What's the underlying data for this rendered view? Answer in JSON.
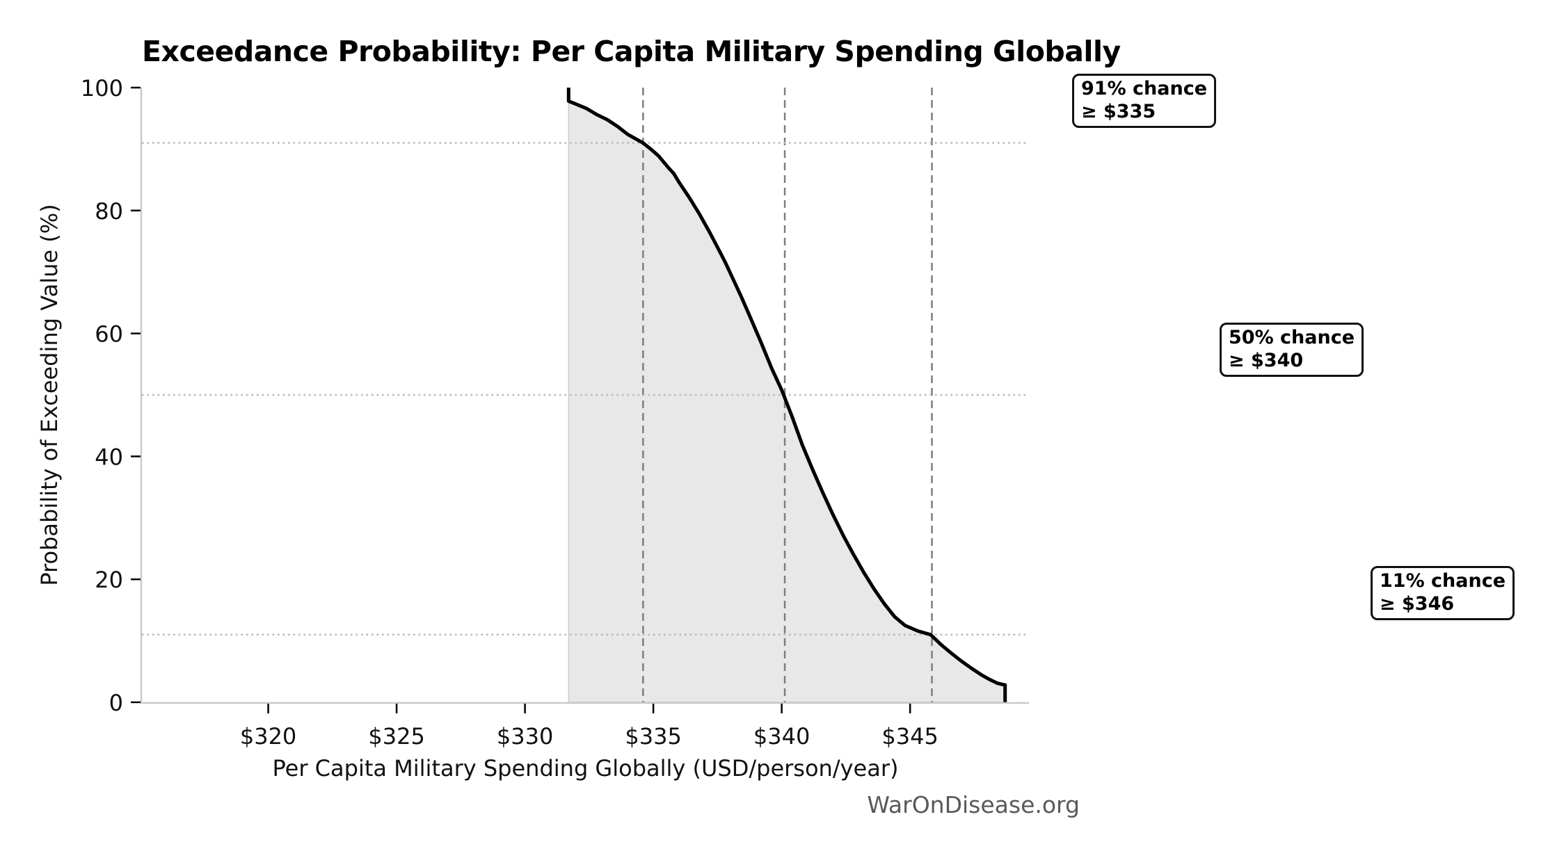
{
  "chart_data": {
    "type": "area",
    "title": "Exceedance Probability: Per Capita Military Spending Globally",
    "xlabel": "Per Capita Military Spending Globally (USD/person/year)",
    "ylabel": "Probability of Exceeding Value (%)",
    "watermark": "WarOnDisease.org",
    "xlim": [
      315.08,
      349.63
    ],
    "ylim": [
      0,
      100
    ],
    "grid": "reference-lines-only",
    "legend": "none",
    "x_ticks": [
      {
        "value": 320,
        "label": "$320"
      },
      {
        "value": 325,
        "label": "$325"
      },
      {
        "value": 330,
        "label": "$330"
      },
      {
        "value": 335,
        "label": "$335"
      },
      {
        "value": 340,
        "label": "$340"
      },
      {
        "value": 345,
        "label": "$345"
      }
    ],
    "y_ticks": [
      {
        "value": 0,
        "label": "0"
      },
      {
        "value": 20,
        "label": "20"
      },
      {
        "value": 40,
        "label": "40"
      },
      {
        "value": 60,
        "label": "60"
      },
      {
        "value": 80,
        "label": "80"
      },
      {
        "value": 100,
        "label": "100"
      }
    ],
    "curve": [
      [
        331.7,
        100
      ],
      [
        331.7,
        97.8
      ],
      [
        332.0,
        97.3
      ],
      [
        332.4,
        96.6
      ],
      [
        332.8,
        95.6
      ],
      [
        333.2,
        94.8
      ],
      [
        333.6,
        93.7
      ],
      [
        334.0,
        92.4
      ],
      [
        334.3,
        91.7
      ],
      [
        334.6,
        91.0
      ],
      [
        334.9,
        90.0
      ],
      [
        335.2,
        88.9
      ],
      [
        335.6,
        86.9
      ],
      [
        335.8,
        86.0
      ],
      [
        336.0,
        84.6
      ],
      [
        336.4,
        82.1
      ],
      [
        336.8,
        79.4
      ],
      [
        337.2,
        76.4
      ],
      [
        337.6,
        73.2
      ],
      [
        337.8,
        71.6
      ],
      [
        338.0,
        69.8
      ],
      [
        338.4,
        66.2
      ],
      [
        338.8,
        62.4
      ],
      [
        339.2,
        58.5
      ],
      [
        339.6,
        54.4
      ],
      [
        340.0,
        50.8
      ],
      [
        340.4,
        46.5
      ],
      [
        340.8,
        41.9
      ],
      [
        341.2,
        37.9
      ],
      [
        341.6,
        34.1
      ],
      [
        342.0,
        30.5
      ],
      [
        342.4,
        27.1
      ],
      [
        342.8,
        24.0
      ],
      [
        343.2,
        21.1
      ],
      [
        343.6,
        18.4
      ],
      [
        344.0,
        16.0
      ],
      [
        344.4,
        13.9
      ],
      [
        344.8,
        12.5
      ],
      [
        345.3,
        11.6
      ],
      [
        345.8,
        11.0
      ],
      [
        346.2,
        9.4
      ],
      [
        346.6,
        8.0
      ],
      [
        347.0,
        6.7
      ],
      [
        347.4,
        5.5
      ],
      [
        347.8,
        4.4
      ],
      [
        348.1,
        3.7
      ],
      [
        348.4,
        3.1
      ],
      [
        348.6,
        2.9
      ],
      [
        348.7,
        2.8
      ],
      [
        348.7,
        0
      ]
    ],
    "reference_lines": {
      "vertical_dashed_x": [
        334.6,
        340.12,
        345.85
      ],
      "horizontal_dotted_y": [
        91,
        50,
        11
      ]
    },
    "quantile_callouts": [
      {
        "probability_pct": 91,
        "spend_usd": 335,
        "line1": "91% chance",
        "line2": "≥ $335"
      },
      {
        "probability_pct": 50,
        "spend_usd": 340,
        "line1": "50% chance",
        "line2": "≥ $340"
      },
      {
        "probability_pct": 11,
        "spend_usd": 346,
        "line1": "11% chance",
        "line2": "≥ $346"
      }
    ],
    "style": {
      "line_color": "#000000",
      "fill_color": "#e8e8e8",
      "fill_edge_color": "#cccccc",
      "dashed_line_color": "#7d7d7d",
      "dotted_line_color": "#b5b5b5",
      "spine_color": "#c9c9c9",
      "tick_color": "#000000",
      "tick_label_color": "#111111",
      "watermark_color": "#595959"
    }
  }
}
